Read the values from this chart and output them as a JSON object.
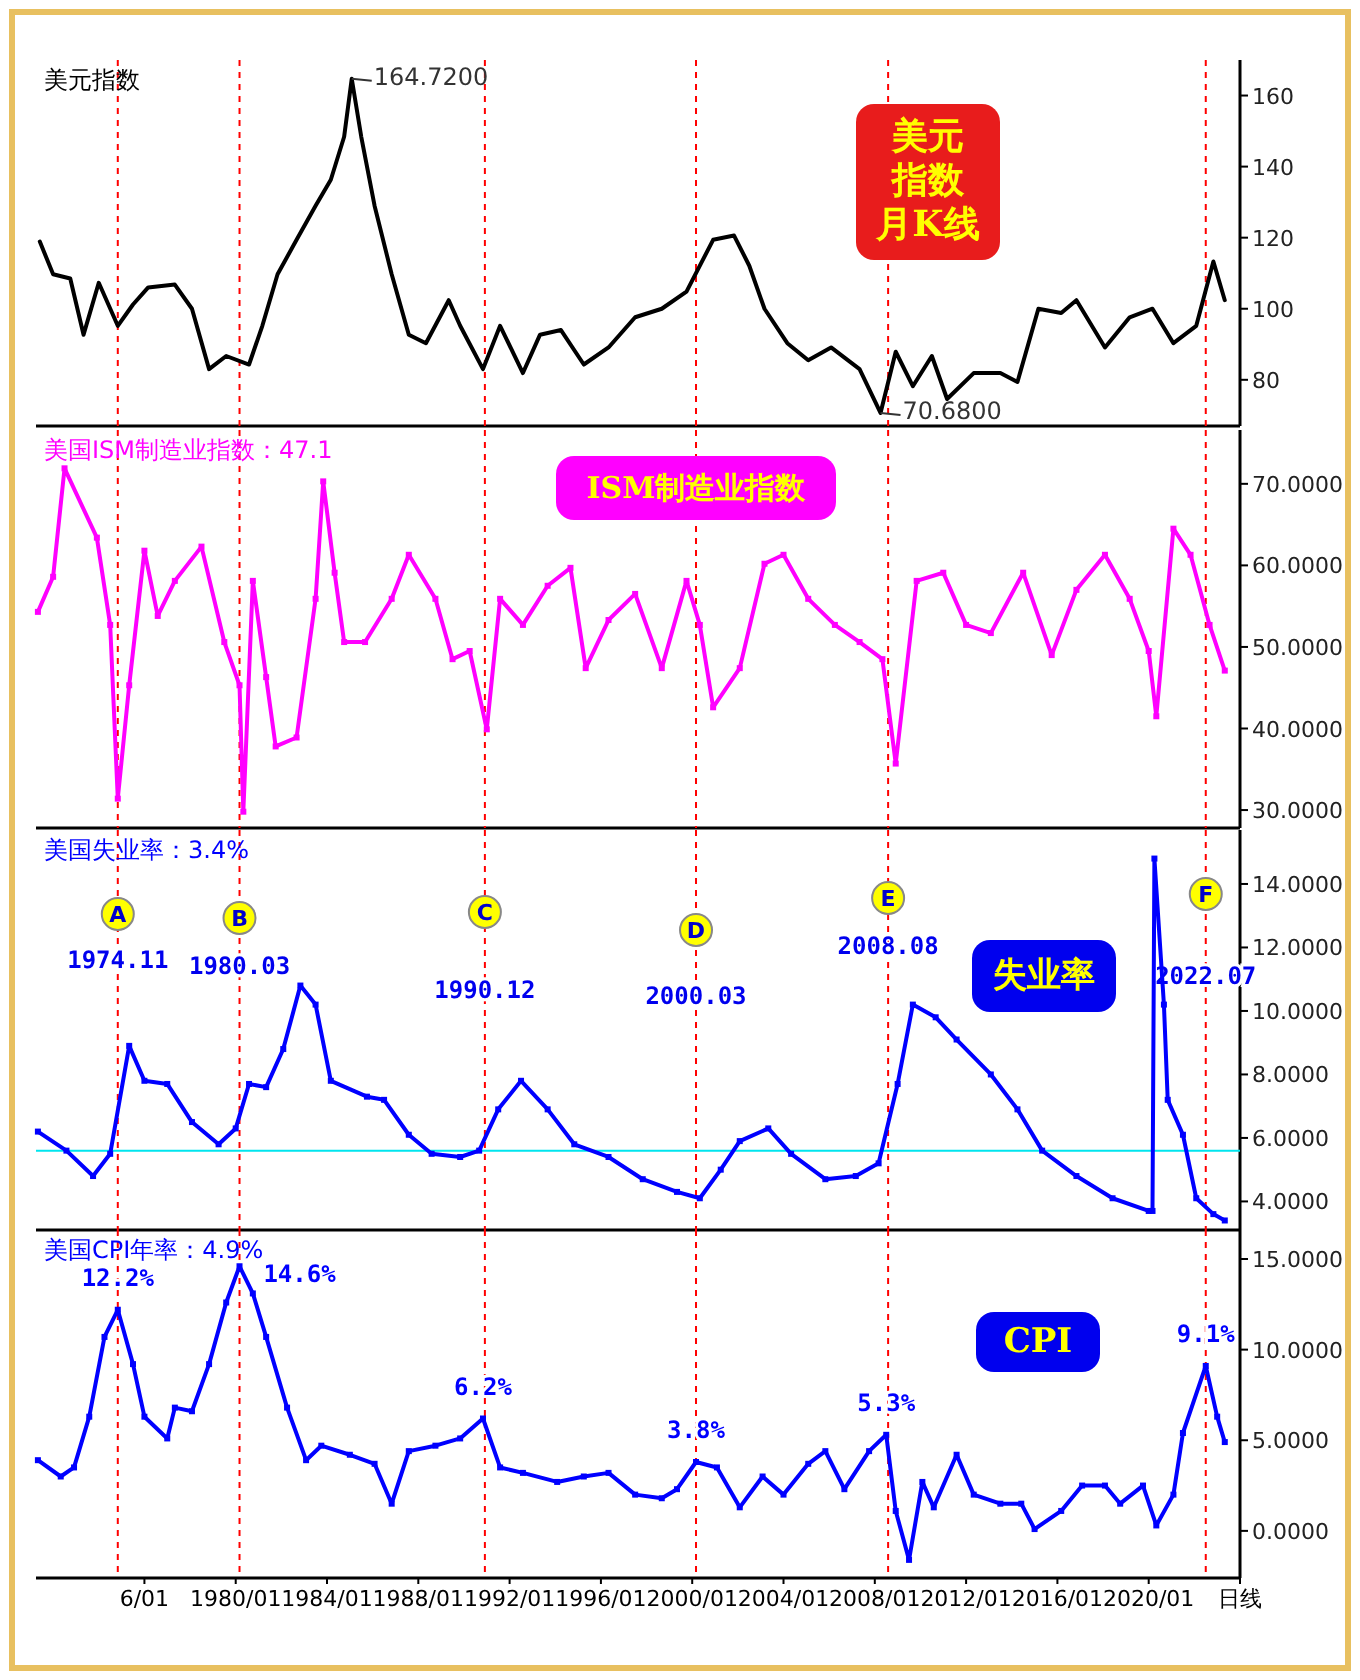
{
  "chart_data": [
    {
      "type": "line",
      "title": "美元指数",
      "xlim": [
        "1971-04",
        "2024-01"
      ],
      "ylim": [
        67,
        170
      ],
      "yticks": [
        80,
        100,
        120,
        140,
        160
      ],
      "tick_labels": "y",
      "series": [
        {
          "color": "#000000",
          "x": [
            "1971-06",
            "1972-01",
            "1972-10",
            "1973-05",
            "1974-01",
            "1974-11",
            "1975-07",
            "1976-03",
            "1977-05",
            "1978-02",
            "1978-11",
            "1979-08",
            "1980-08",
            "1981-03",
            "1981-11",
            "1982-09",
            "1983-07",
            "1984-03",
            "1984-10",
            "1985-02",
            "1985-07",
            "1986-02",
            "1986-11",
            "1987-08",
            "1988-05",
            "1989-05",
            "1989-11",
            "1990-11",
            "1991-08",
            "1992-08",
            "1993-05",
            "1994-04",
            "1995-04",
            "1996-05",
            "1997-07",
            "1998-09",
            "1999-10",
            "2000-12",
            "2001-11",
            "2002-07",
            "2003-03",
            "2004-03",
            "2005-02",
            "2006-02",
            "2007-05",
            "2008-04",
            "2008-12",
            "2009-09",
            "2010-07",
            "2011-03",
            "2012-05",
            "2013-07",
            "2014-04",
            "2015-03",
            "2016-03",
            "2016-11",
            "2018-02",
            "2019-03",
            "2020-03",
            "2021-02",
            "2022-02",
            "2022-11",
            "2023-05"
          ],
          "values": [
            118.9,
            109.7,
            108.5,
            92.7,
            107.3,
            95.2,
            101.2,
            106,
            106.8,
            100,
            83,
            86.7,
            84.3,
            95.2,
            109.7,
            119.4,
            129,
            136.3,
            148.4,
            164.72,
            148.4,
            129,
            109.7,
            92.7,
            90.3,
            102.4,
            95.2,
            83,
            95.2,
            81.9,
            92.7,
            94,
            84.3,
            89.1,
            97.6,
            100,
            104.8,
            119.4,
            120.6,
            112.1,
            100,
            90.3,
            85.5,
            89.1,
            83,
            70.68,
            87.9,
            78.2,
            86.7,
            74.6,
            81.9,
            81.9,
            79.4,
            100,
            98.8,
            102.4,
            89.1,
            97.6,
            100,
            90.3,
            95.2,
            113.3,
            102.4
          ]
        }
      ],
      "ref_lines": [
        {
          "axis": "x",
          "value": "1974-11",
          "color": "#ff0000",
          "line_style": "dashed"
        },
        {
          "axis": "x",
          "value": "1980-03",
          "color": "#ff0000",
          "line_style": "dashed"
        },
        {
          "axis": "x",
          "value": "1990-12",
          "color": "#ff0000",
          "line_style": "dashed"
        },
        {
          "axis": "x",
          "value": "2000-03",
          "color": "#ff0000",
          "line_style": "dashed"
        },
        {
          "axis": "x",
          "value": "2008-08",
          "color": "#ff0000",
          "line_style": "dashed"
        },
        {
          "axis": "x",
          "value": "2022-07",
          "color": "#ff0000",
          "line_style": "dashed"
        }
      ],
      "annotations": [
        {
          "text": "164.7200",
          "x": "1985-02",
          "y": 164.72
        },
        {
          "text": "70.6800",
          "x": "2008-04",
          "y": 70.68
        },
        "美元指数月K线"
      ]
    },
    {
      "type": "line",
      "title": "美国ISM制造业指数：47.1",
      "xlim": [
        "1971-04",
        "2024-01"
      ],
      "ylim": [
        27.8,
        76.6
      ],
      "tick_labels": "y",
      "marker": "square",
      "yticks": [
        {
          "value": 30,
          "label": "30.0000"
        },
        {
          "value": 40,
          "label": "40.0000"
        },
        {
          "value": 50,
          "label": "50.0000"
        },
        {
          "value": 60,
          "label": "60.0000"
        },
        {
          "value": 70,
          "label": "70.0000"
        }
      ],
      "series": [
        {
          "color": "#ff00ff",
          "x": [
            "1971-05",
            "1972-01",
            "1972-07",
            "1973-12",
            "1974-07",
            "1974-11",
            "1975-05",
            "1976-01",
            "1976-08",
            "1977-05",
            "1978-07",
            "1979-07",
            "1980-03",
            "1980-05",
            "1980-10",
            "1981-05",
            "1981-10",
            "1982-09",
            "1983-07",
            "1983-11",
            "1984-05",
            "1984-10",
            "1985-09",
            "1986-11",
            "1987-08",
            "1988-10",
            "1989-07",
            "1990-04",
            "1991-01",
            "1991-08",
            "1992-08",
            "1993-09",
            "1994-09",
            "1995-05",
            "1996-05",
            "1997-07",
            "1998-09",
            "1999-10",
            "2000-05",
            "2000-12",
            "2002-02",
            "2003-03",
            "2004-01",
            "2005-02",
            "2006-04",
            "2007-05",
            "2008-05",
            "2008-12",
            "2009-11",
            "2011-01",
            "2012-01",
            "2013-02",
            "2014-07",
            "2015-10",
            "2016-11",
            "2018-02",
            "2019-03",
            "2020-01",
            "2020-05",
            "2021-02",
            "2021-11",
            "2022-09",
            "2023-05"
          ],
          "values": [
            54.3,
            58.6,
            71.9,
            63.4,
            52.7,
            31.4,
            45.3,
            61.8,
            53.8,
            58.1,
            62.3,
            50.6,
            45.3,
            29.8,
            58.1,
            46.3,
            37.8,
            38.9,
            55.9,
            70.3,
            59.1,
            50.6,
            50.6,
            55.9,
            61.3,
            55.9,
            48.5,
            49.5,
            39.9,
            55.9,
            52.7,
            57.5,
            59.7,
            47.4,
            53.3,
            56.5,
            47.4,
            58.1,
            52.7,
            42.6,
            47.4,
            60.2,
            61.3,
            55.9,
            52.7,
            50.6,
            48.5,
            35.7,
            58.1,
            59.1,
            52.7,
            51.7,
            59.1,
            49,
            57,
            61.3,
            55.9,
            49.5,
            41.5,
            64.5,
            61.3,
            52.7,
            47.1
          ]
        }
      ],
      "ref_lines": [
        {
          "axis": "x",
          "value": "1974-11",
          "color": "#ff0000",
          "line_style": "dashed"
        },
        {
          "axis": "x",
          "value": "1980-03",
          "color": "#ff0000",
          "line_style": "dashed"
        },
        {
          "axis": "x",
          "value": "1990-12",
          "color": "#ff0000",
          "line_style": "dashed"
        },
        {
          "axis": "x",
          "value": "2000-03",
          "color": "#ff0000",
          "line_style": "dashed"
        },
        {
          "axis": "x",
          "value": "2008-08",
          "color": "#ff0000",
          "line_style": "dashed"
        },
        {
          "axis": "x",
          "value": "2022-07",
          "color": "#ff0000",
          "line_style": "dashed"
        }
      ],
      "annotations": [
        "ISM制造业指数"
      ]
    },
    {
      "type": "line",
      "title": "美国失业率：3.4%",
      "xlim": [
        "1971-04",
        "2024-01"
      ],
      "ylim": [
        3.1,
        15.7
      ],
      "tick_labels": "y",
      "marker": "square",
      "yticks": [
        {
          "value": 4,
          "label": "4.0000"
        },
        {
          "value": 6,
          "label": "6.0000"
        },
        {
          "value": 8,
          "label": "8.0000"
        },
        {
          "value": 10,
          "label": "10.0000"
        },
        {
          "value": 12,
          "label": "12.0000"
        },
        {
          "value": 14,
          "label": "14.0000"
        }
      ],
      "series": [
        {
          "color": "#0000ff",
          "x": [
            "1971-05",
            "1972-08",
            "1973-10",
            "1974-07",
            "1975-05",
            "1976-01",
            "1977-01",
            "1978-02",
            "1979-04",
            "1980-01",
            "1980-08",
            "1981-05",
            "1982-02",
            "1982-11",
            "1983-07",
            "1984-03",
            "1985-10",
            "1986-07",
            "1987-08",
            "1988-08",
            "1989-11",
            "1990-09",
            "1991-07",
            "1992-07",
            "1993-09",
            "1994-11",
            "1996-05",
            "1997-11",
            "1999-05",
            "2000-05",
            "2001-04",
            "2002-02",
            "2003-05",
            "2004-05",
            "2005-11",
            "2007-03",
            "2008-03",
            "2009-01",
            "2009-09",
            "2010-09",
            "2011-08",
            "2013-02",
            "2014-04",
            "2015-05",
            "2016-11",
            "2018-06",
            "2020-01",
            "2020-03",
            "2020-04",
            "2020-09",
            "2020-11",
            "2021-07",
            "2022-02",
            "2022-11",
            "2023-05"
          ],
          "values": [
            6.2,
            5.6,
            4.8,
            5.5,
            8.9,
            7.8,
            7.7,
            6.5,
            5.8,
            6.3,
            7.7,
            7.6,
            8.8,
            10.8,
            10.2,
            7.8,
            7.3,
            7.2,
            6.1,
            5.5,
            5.4,
            5.6,
            6.9,
            7.8,
            6.9,
            5.8,
            5.4,
            4.7,
            4.3,
            4.1,
            5,
            5.9,
            6.3,
            5.5,
            4.7,
            4.8,
            5.2,
            7.7,
            10.2,
            9.8,
            9.1,
            8,
            6.9,
            5.6,
            4.8,
            4.1,
            3.7,
            3.7,
            14.8,
            10.2,
            7.2,
            6.1,
            4.1,
            3.6,
            3.4
          ]
        }
      ],
      "ref_lines": [
        {
          "axis": "x",
          "value": "1974-11",
          "label": "1974.11",
          "color": "#ff0000",
          "line_style": "dashed"
        },
        {
          "axis": "x",
          "value": "1980-03",
          "label": "1980.03",
          "color": "#ff0000",
          "line_style": "dashed"
        },
        {
          "axis": "x",
          "value": "1990-12",
          "label": "1990.12",
          "color": "#ff0000",
          "line_style": "dashed"
        },
        {
          "axis": "x",
          "value": "2000-03",
          "label": "2000.03",
          "color": "#ff0000",
          "line_style": "dashed"
        },
        {
          "axis": "x",
          "value": "2008-08",
          "label": "2008.08",
          "color": "#ff0000",
          "line_style": "dashed"
        },
        {
          "axis": "x",
          "value": "2022-07",
          "label": "2022.07",
          "color": "#ff0000",
          "line_style": "dashed"
        },
        {
          "axis": "y",
          "value": 5.6,
          "color": "#00e5ee",
          "line_style": "solid"
        }
      ],
      "annotations": [
        "A",
        "B",
        "C",
        "D",
        "E",
        "F",
        "失业率"
      ]
    },
    {
      "type": "line",
      "title": "美国CPI年率：4.9%",
      "xlim": [
        "1971-04",
        "2024-01"
      ],
      "ylim": [
        -2.6,
        16.6
      ],
      "marker": "square",
      "yticks": [
        {
          "value": 0,
          "label": "0.0000"
        },
        {
          "value": 5,
          "label": "5.0000"
        },
        {
          "value": 10,
          "label": "10.0000"
        },
        {
          "value": 15,
          "label": "15.0000"
        }
      ],
      "xticks": [
        {
          "value": "1976-01",
          "label": "6/01"
        },
        {
          "value": "1980-01",
          "label": "1980/01"
        },
        {
          "value": "1984-01",
          "label": "1984/01"
        },
        {
          "value": "1988-01",
          "label": "1988/01"
        },
        {
          "value": "1992-01",
          "label": "1992/01"
        },
        {
          "value": "1996-01",
          "label": "1996/01"
        },
        {
          "value": "2000-01",
          "label": "2000/01"
        },
        {
          "value": "2004-01",
          "label": "2004/01"
        },
        {
          "value": "2008-01",
          "label": "2008/01"
        },
        {
          "value": "2012-01",
          "label": "2012/01"
        },
        {
          "value": "2016-01",
          "label": "2016/01"
        },
        {
          "value": "2020-01",
          "label": "2020/01"
        },
        {
          "value": "2024-01",
          "label": "日线"
        }
      ],
      "series": [
        {
          "color": "#0000ff",
          "x": [
            "1971-05",
            "1972-05",
            "1972-12",
            "1973-08",
            "1974-04",
            "1974-11",
            "1975-07",
            "1976-01",
            "1977-01",
            "1977-05",
            "1978-02",
            "1978-11",
            "1979-08",
            "1980-03",
            "1980-10",
            "1981-05",
            "1982-04",
            "1983-02",
            "1983-10",
            "1985-01",
            "1986-02",
            "1986-11",
            "1987-08",
            "1988-10",
            "1989-11",
            "1990-11",
            "1991-08",
            "1992-08",
            "1994-02",
            "1995-04",
            "1996-05",
            "1997-07",
            "1998-09",
            "1999-05",
            "2000-03",
            "2001-02",
            "2002-02",
            "2003-02",
            "2004-01",
            "2005-02",
            "2005-11",
            "2006-09",
            "2007-10",
            "2008-07",
            "2008-12",
            "2009-07",
            "2010-02",
            "2010-08",
            "2011-08",
            "2012-05",
            "2013-07",
            "2014-06",
            "2015-01",
            "2016-03",
            "2017-02",
            "2018-02",
            "2018-10",
            "2019-10",
            "2020-05",
            "2021-02",
            "2021-07",
            "2022-07",
            "2023-01",
            "2023-05"
          ],
          "values": [
            3.9,
            3,
            3.5,
            6.3,
            10.7,
            12.2,
            9.2,
            6.3,
            5.1,
            6.8,
            6.6,
            9.2,
            12.6,
            14.6,
            13.1,
            10.7,
            6.8,
            3.9,
            4.7,
            4.2,
            3.7,
            1.5,
            4.4,
            4.7,
            5.1,
            6.2,
            3.5,
            3.2,
            2.7,
            3,
            3.2,
            2,
            1.8,
            2.3,
            3.8,
            3.5,
            1.3,
            3,
            2,
            3.7,
            4.4,
            2.3,
            4.4,
            5.3,
            1.1,
            -1.6,
            2.7,
            1.3,
            4.2,
            2,
            1.5,
            1.5,
            0.1,
            1.1,
            2.5,
            2.5,
            1.5,
            2.5,
            0.3,
            2,
            5.4,
            9.1,
            6.3,
            4.9
          ]
        }
      ],
      "ref_lines": [
        {
          "axis": "x",
          "value": "1974-11",
          "color": "#ff0000",
          "line_style": "dashed"
        },
        {
          "axis": "x",
          "value": "1980-03",
          "color": "#ff0000",
          "line_style": "dashed"
        },
        {
          "axis": "x",
          "value": "1990-12",
          "color": "#ff0000",
          "line_style": "dashed"
        },
        {
          "axis": "x",
          "value": "2000-03",
          "color": "#ff0000",
          "line_style": "dashed"
        },
        {
          "axis": "x",
          "value": "2008-08",
          "color": "#ff0000",
          "line_style": "dashed"
        },
        {
          "axis": "x",
          "value": "2022-07",
          "color": "#ff0000",
          "line_style": "dashed"
        }
      ],
      "annotations": [
        {
          "text": "12.2%",
          "x": "1974-11",
          "y": 12.2
        },
        {
          "text": "14.6%",
          "x": "1980-03",
          "y": 14.6
        },
        {
          "text": "6.2%",
          "x": "1990-11",
          "y": 6.2
        },
        {
          "text": "3.8%",
          "x": "2000-03",
          "y": 3.8
        },
        {
          "text": "5.3%",
          "x": "2008-07",
          "y": 5.3
        },
        {
          "text": "9.1%",
          "x": "2022-07",
          "y": 9.1
        },
        "CPI"
      ]
    }
  ]
}
